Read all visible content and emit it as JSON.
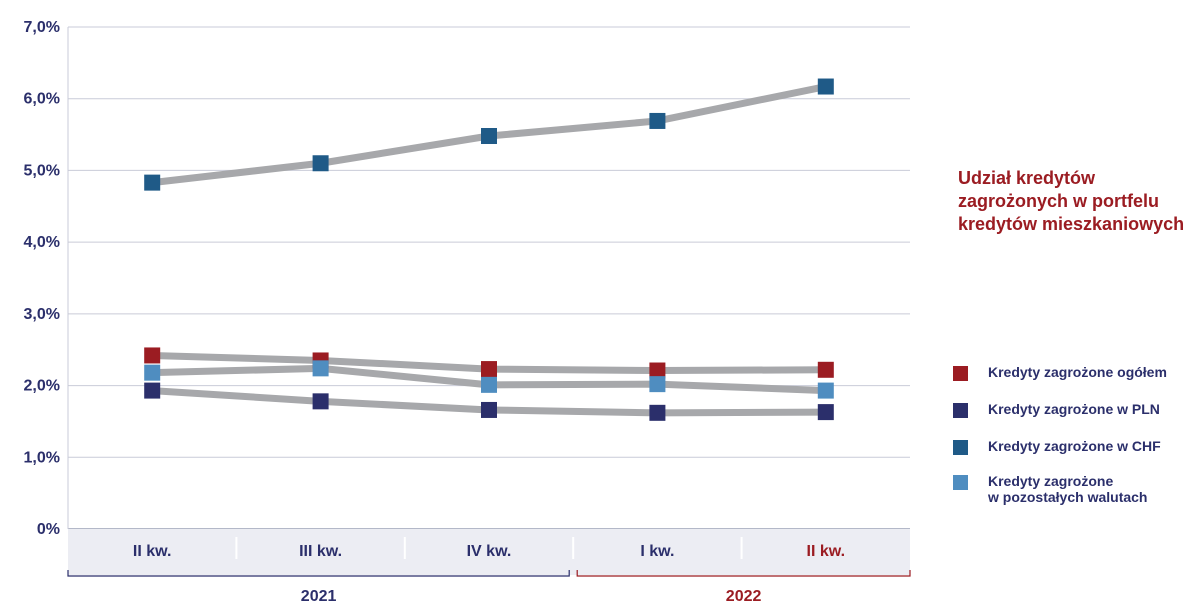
{
  "chart_data": {
    "type": "line",
    "title": "Udział kredytów zagrożonych w portfelu kredytów mieszkaniowych",
    "categories": [
      "II kw.",
      "III kw.",
      "IV kw.",
      "I kw.",
      "II kw."
    ],
    "category_colors": [
      "#2b2f6b",
      "#2b2f6b",
      "#2b2f6b",
      "#2b2f6b",
      "#9b1c22"
    ],
    "years": [
      {
        "label": "2021",
        "from": 0,
        "to": 2,
        "color": "#2b2f6b"
      },
      {
        "label": "2022",
        "from": 3,
        "to": 4,
        "color": "#9b1c22"
      }
    ],
    "yticks": [
      "0%",
      "1,0%",
      "2,0%",
      "3,0%",
      "4,0%",
      "5,0%",
      "6,0%",
      "7,0%"
    ],
    "ylim": [
      0,
      7
    ],
    "grid": true,
    "legend_position": "right",
    "series": [
      {
        "name": "Kredyty zagrożone ogółem",
        "color": "#9b1c22",
        "values": [
          2.42,
          2.35,
          2.23,
          2.21,
          2.22
        ]
      },
      {
        "name": "Kredyty zagrożone w PLN",
        "color": "#2b2f6b",
        "values": [
          1.93,
          1.78,
          1.66,
          1.62,
          1.63
        ]
      },
      {
        "name": "Kredyty zagrożone w CHF",
        "color": "#1f5a87",
        "values": [
          4.83,
          5.1,
          5.48,
          5.69,
          6.17
        ]
      },
      {
        "name": "Kredyty zagrożone\nw pozostałych walutach",
        "color": "#4f8dc0",
        "values": [
          2.18,
          2.24,
          2.01,
          2.02,
          1.93
        ]
      }
    ],
    "line_color": "#a7a8ab"
  }
}
